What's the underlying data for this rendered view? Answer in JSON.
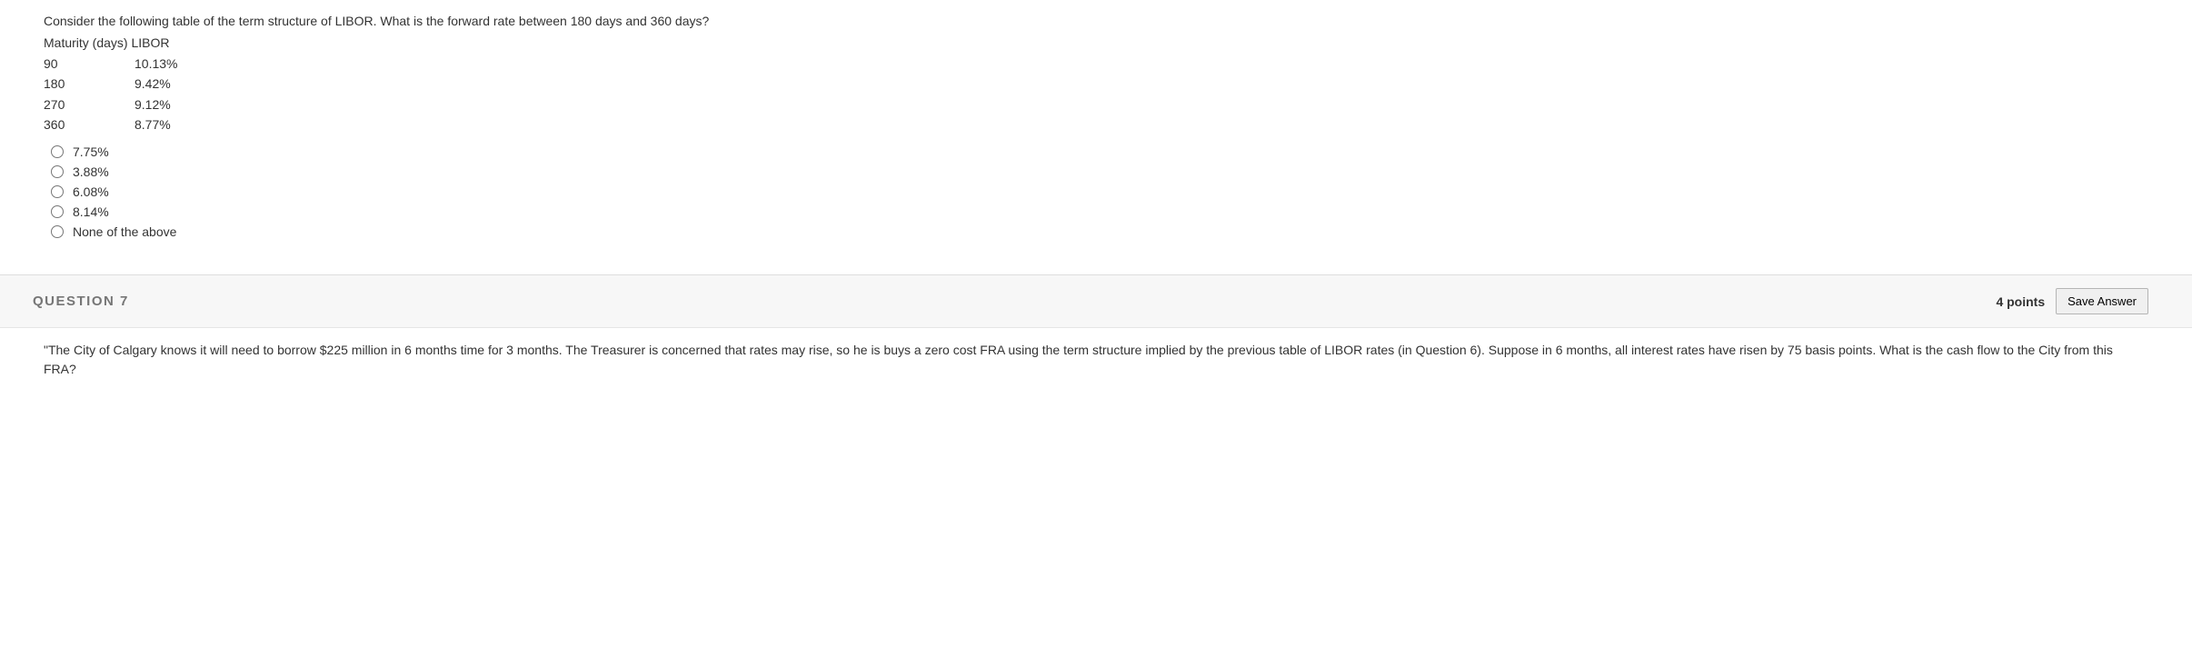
{
  "question6": {
    "prompt": "Consider the following table of the term structure of LIBOR. What is the forward rate between 180 days and 360 days?",
    "table": {
      "header": "Maturity (days) LIBOR",
      "rows": [
        {
          "maturity": "90",
          "rate": "10.13%"
        },
        {
          "maturity": "180",
          "rate": "9.42%"
        },
        {
          "maturity": "270",
          "rate": " 9.12%"
        },
        {
          "maturity": "360",
          "rate": "8.77%"
        }
      ]
    },
    "options": [
      "7.75%",
      "3.88%",
      "6.08%",
      "8.14%",
      "None of the above"
    ]
  },
  "question7": {
    "title": "QUESTION 7",
    "points": "4 points",
    "save_label": "Save Answer",
    "prompt": "\"The City of Calgary knows it will need to borrow $225 million in 6 months time for 3 months. The Treasurer is concerned that rates may rise, so he is buys a zero cost FRA using the term structure implied by the previous table of LIBOR rates (in Question 6).  Suppose in 6 months, all interest rates have risen by 75 basis points. What is the cash flow to the City from this FRA?"
  }
}
